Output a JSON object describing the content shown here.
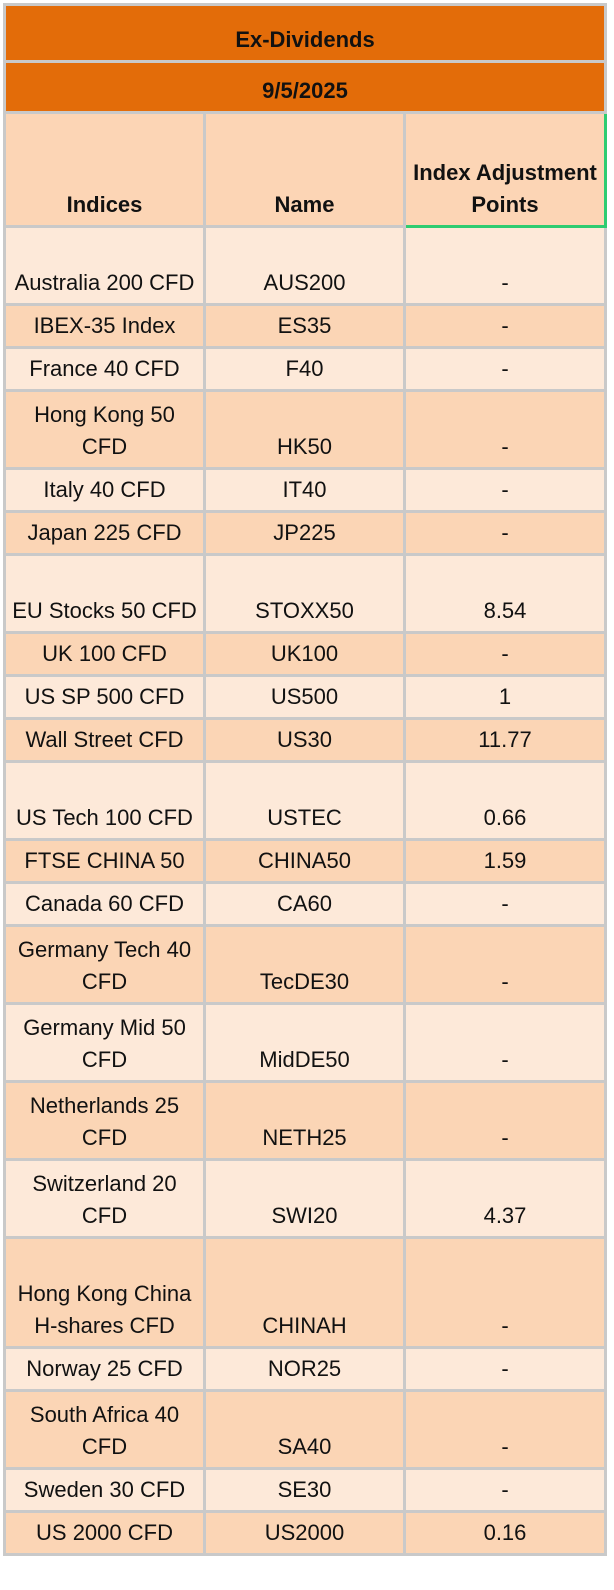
{
  "title": "Ex-Dividends",
  "date": "9/5/2025",
  "headers": {
    "indices": "Indices",
    "name": "Name",
    "points": "Index Adjustment Points"
  },
  "rows": [
    {
      "index": "Australia 200 CFD",
      "name": "AUS200",
      "points": "-",
      "h": 2
    },
    {
      "index": "IBEX-35 Index",
      "name": "ES35",
      "points": "-",
      "h": 1
    },
    {
      "index": "France 40 CFD",
      "name": "F40",
      "points": "-",
      "h": 1
    },
    {
      "index": "Hong Kong 50 CFD",
      "name": "HK50",
      "points": "-",
      "h": 2
    },
    {
      "index": "Italy 40 CFD",
      "name": "IT40",
      "points": "-",
      "h": 1
    },
    {
      "index": "Japan 225 CFD",
      "name": "JP225",
      "points": "-",
      "h": 1
    },
    {
      "index": "EU Stocks 50 CFD",
      "name": "STOXX50",
      "points": "8.54",
      "h": 2
    },
    {
      "index": "UK 100 CFD",
      "name": "UK100",
      "points": "-",
      "h": 1
    },
    {
      "index": "US SP 500 CFD",
      "name": "US500",
      "points": "1",
      "h": 1
    },
    {
      "index": "Wall Street CFD",
      "name": "US30",
      "points": "11.77",
      "h": 1
    },
    {
      "index": "US Tech 100 CFD",
      "name": "USTEC",
      "points": "0.66",
      "h": 2
    },
    {
      "index": "FTSE CHINA 50",
      "name": "CHINA50",
      "points": "1.59",
      "h": 1
    },
    {
      "index": "Canada 60 CFD",
      "name": "CA60",
      "points": "-",
      "h": 1
    },
    {
      "index": "Germany Tech 40 CFD",
      "name": "TecDE30",
      "points": "-",
      "h": 2
    },
    {
      "index": "Germany Mid 50 CFD",
      "name": "MidDE50",
      "points": "-",
      "h": 2
    },
    {
      "index": "Netherlands 25 CFD",
      "name": "NETH25",
      "points": "-",
      "h": 2
    },
    {
      "index": "Switzerland 20 CFD",
      "name": "SWI20",
      "points": "4.37",
      "h": 2
    },
    {
      "index": "Hong Kong China H-shares CFD",
      "name": "CHINAH",
      "points": "-",
      "h": 3
    },
    {
      "index": "Norway 25 CFD",
      "name": "NOR25",
      "points": "-",
      "h": 1
    },
    {
      "index": "South Africa 40 CFD",
      "name": "SA40",
      "points": "-",
      "h": 2
    },
    {
      "index": "Sweden 30 CFD",
      "name": "SE30",
      "points": "-",
      "h": 1
    },
    {
      "index": "US 2000 CFD",
      "name": "US2000",
      "points": "0.16",
      "h": 1
    }
  ]
}
